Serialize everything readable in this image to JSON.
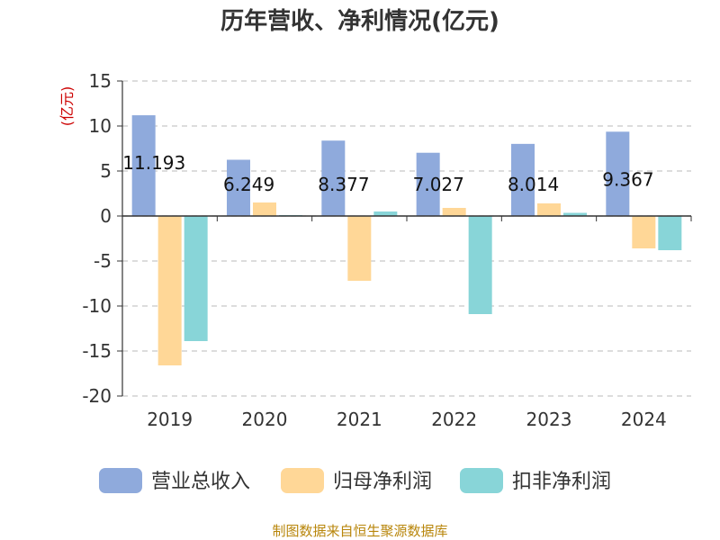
{
  "chart_data": {
    "type": "bar",
    "title": "历年营收、净利情况(亿元)",
    "unit_label": "(亿元)",
    "categories": [
      "2019",
      "2020",
      "2021",
      "2022",
      "2023",
      "2024"
    ],
    "series": [
      {
        "name": "营业总收入",
        "color": "#8faadc",
        "values": [
          11.193,
          6.249,
          8.377,
          7.027,
          8.014,
          9.367
        ]
      },
      {
        "name": "归母净利润",
        "color": "#ffd797",
        "values": [
          -16.6,
          1.5,
          -7.2,
          0.9,
          1.4,
          -3.6
        ]
      },
      {
        "name": "扣非净利润",
        "color": "#88d5d8",
        "values": [
          -13.9,
          0.1,
          0.5,
          -10.9,
          0.35,
          -3.8
        ]
      }
    ],
    "data_labels": [
      "11.193",
      "6.249",
      "8.377",
      "7.027",
      "8.014",
      "9.367"
    ],
    "yticks": [
      15,
      10,
      5,
      0,
      -5,
      -10,
      -15,
      -20
    ],
    "ylim": [
      -20,
      15
    ],
    "grid": true,
    "legend_position": "bottom",
    "unit_color": "#cc0000"
  },
  "source": {
    "text": "制图数据来自恒生聚源数据库",
    "color": "#b8860b"
  }
}
